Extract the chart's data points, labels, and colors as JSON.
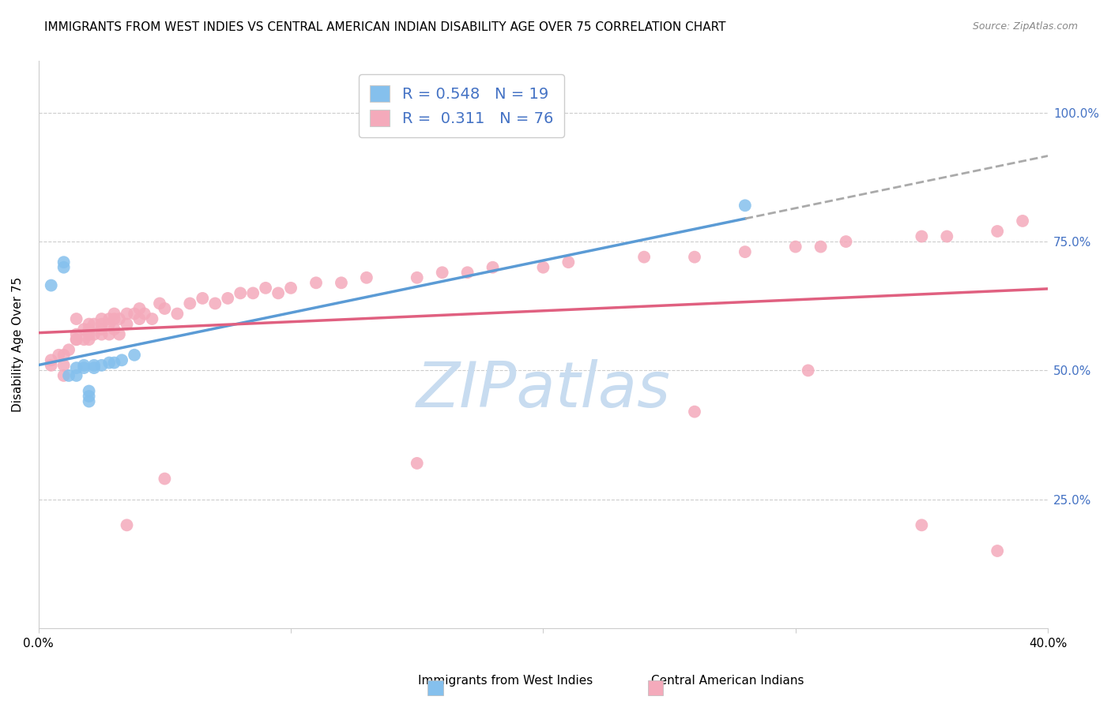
{
  "title": "IMMIGRANTS FROM WEST INDIES VS CENTRAL AMERICAN INDIAN DISABILITY AGE OVER 75 CORRELATION CHART",
  "source": "Source: ZipAtlas.com",
  "ylabel": "Disability Age Over 75",
  "xlim": [
    0.0,
    0.4
  ],
  "ylim": [
    0.0,
    1.1
  ],
  "yticks_right": [
    0.25,
    0.5,
    0.75,
    1.0
  ],
  "ytick_right_labels": [
    "25.0%",
    "50.0%",
    "75.0%",
    "100.0%"
  ],
  "blue_R": 0.548,
  "blue_N": 19,
  "pink_R": 0.311,
  "pink_N": 76,
  "blue_color": "#85C0ED",
  "pink_color": "#F4AABB",
  "blue_line_color": "#5B9BD5",
  "pink_line_color": "#E06080",
  "watermark_color": "#C8DCF0",
  "title_fontsize": 11,
  "source_fontsize": 9,
  "blue_scatter_x": [
    0.005,
    0.01,
    0.01,
    0.012,
    0.015,
    0.015,
    0.018,
    0.018,
    0.02,
    0.02,
    0.02,
    0.022,
    0.022,
    0.025,
    0.028,
    0.03,
    0.033,
    0.038,
    0.28
  ],
  "blue_scatter_y": [
    0.665,
    0.7,
    0.71,
    0.49,
    0.49,
    0.505,
    0.505,
    0.51,
    0.44,
    0.45,
    0.46,
    0.505,
    0.51,
    0.51,
    0.515,
    0.515,
    0.52,
    0.53,
    0.82
  ],
  "pink_scatter_x": [
    0.005,
    0.005,
    0.008,
    0.01,
    0.01,
    0.01,
    0.012,
    0.015,
    0.015,
    0.015,
    0.015,
    0.018,
    0.018,
    0.02,
    0.02,
    0.02,
    0.02,
    0.022,
    0.022,
    0.025,
    0.025,
    0.025,
    0.025,
    0.028,
    0.028,
    0.028,
    0.03,
    0.03,
    0.03,
    0.032,
    0.032,
    0.035,
    0.035,
    0.038,
    0.04,
    0.04,
    0.042,
    0.045,
    0.048,
    0.05,
    0.055,
    0.06,
    0.065,
    0.07,
    0.075,
    0.08,
    0.085,
    0.09,
    0.095,
    0.1,
    0.11,
    0.12,
    0.13,
    0.15,
    0.16,
    0.17,
    0.18,
    0.2,
    0.21,
    0.24,
    0.26,
    0.28,
    0.3,
    0.31,
    0.32,
    0.35,
    0.36,
    0.38,
    0.39,
    0.035,
    0.05,
    0.15,
    0.26,
    0.305,
    0.35,
    0.38
  ],
  "pink_scatter_y": [
    0.51,
    0.52,
    0.53,
    0.49,
    0.51,
    0.53,
    0.54,
    0.56,
    0.57,
    0.56,
    0.6,
    0.56,
    0.58,
    0.56,
    0.57,
    0.58,
    0.59,
    0.57,
    0.59,
    0.57,
    0.58,
    0.59,
    0.6,
    0.57,
    0.59,
    0.6,
    0.58,
    0.6,
    0.61,
    0.57,
    0.6,
    0.59,
    0.61,
    0.61,
    0.6,
    0.62,
    0.61,
    0.6,
    0.63,
    0.62,
    0.61,
    0.63,
    0.64,
    0.63,
    0.64,
    0.65,
    0.65,
    0.66,
    0.65,
    0.66,
    0.67,
    0.67,
    0.68,
    0.68,
    0.69,
    0.69,
    0.7,
    0.7,
    0.71,
    0.72,
    0.72,
    0.73,
    0.74,
    0.74,
    0.75,
    0.76,
    0.76,
    0.77,
    0.79,
    0.2,
    0.29,
    0.32,
    0.42,
    0.5,
    0.2,
    0.15
  ]
}
